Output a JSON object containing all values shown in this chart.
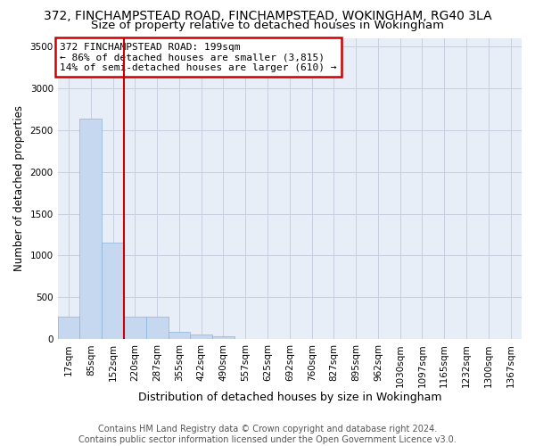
{
  "title1": "372, FINCHAMPSTEAD ROAD, FINCHAMPSTEAD, WOKINGHAM, RG40 3LA",
  "title2": "Size of property relative to detached houses in Wokingham",
  "xlabel": "Distribution of detached houses by size in Wokingham",
  "ylabel": "Number of detached properties",
  "footer1": "Contains HM Land Registry data © Crown copyright and database right 2024.",
  "footer2": "Contains public sector information licensed under the Open Government Licence v3.0.",
  "annotation_line1": "372 FINCHAMPSTEAD ROAD: 199sqm",
  "annotation_line2": "← 86% of detached houses are smaller (3,815)",
  "annotation_line3": "14% of semi-detached houses are larger (610) →",
  "bar_color": "#C5D8F0",
  "bar_edge_color": "#8AB4D8",
  "vline_color": "#CC0000",
  "annotation_box_color": "#CC0000",
  "bg_color": "#E8EEF8",
  "grid_color": "#C8D0E0",
  "categories": [
    "17sqm",
    "85sqm",
    "152sqm",
    "220sqm",
    "287sqm",
    "355sqm",
    "422sqm",
    "490sqm",
    "557sqm",
    "625sqm",
    "692sqm",
    "760sqm",
    "827sqm",
    "895sqm",
    "962sqm",
    "1030sqm",
    "1097sqm",
    "1165sqm",
    "1232sqm",
    "1300sqm",
    "1367sqm"
  ],
  "values": [
    270,
    2640,
    1150,
    275,
    275,
    90,
    55,
    40,
    0,
    0,
    0,
    0,
    0,
    0,
    0,
    0,
    0,
    0,
    0,
    0,
    0
  ],
  "ylim": [
    0,
    3600
  ],
  "yticks": [
    0,
    500,
    1000,
    1500,
    2000,
    2500,
    3000,
    3500
  ],
  "vline_position": 2.5,
  "title1_fontsize": 10,
  "title2_fontsize": 9.5,
  "annotation_fontsize": 8,
  "axis_label_fontsize": 9,
  "ylabel_fontsize": 8.5,
  "tick_fontsize": 7.5,
  "footer_fontsize": 7
}
